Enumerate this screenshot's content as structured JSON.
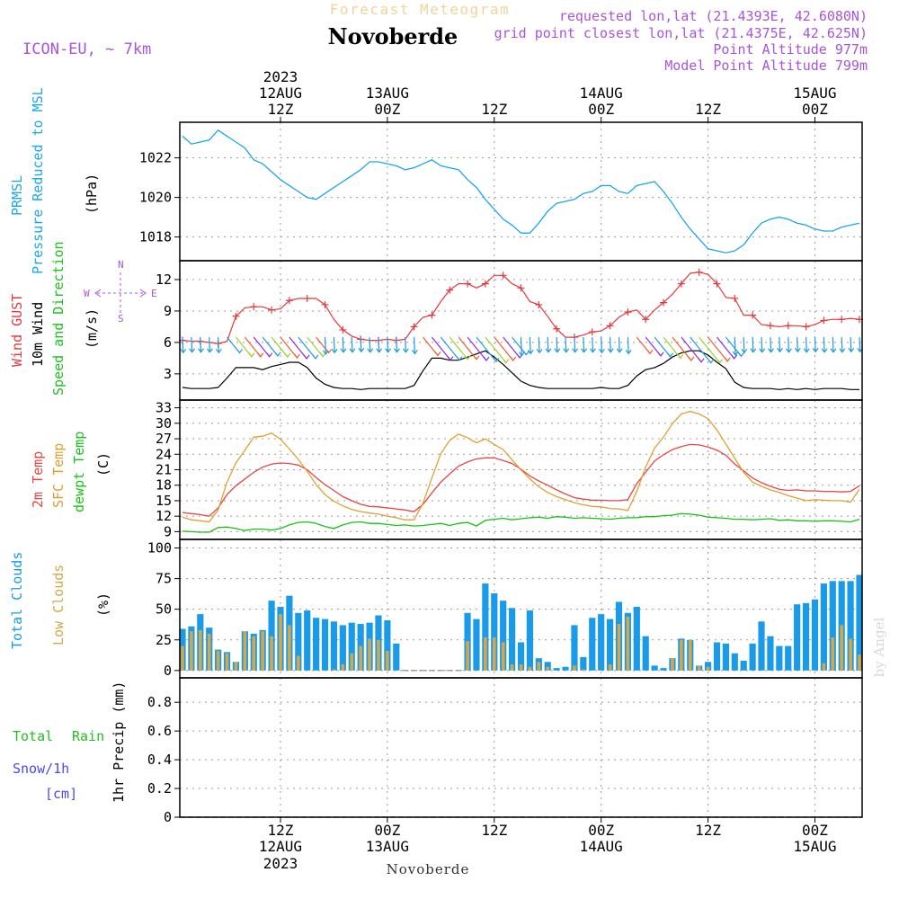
{
  "header": {
    "title": "Forecast Meteogram",
    "location": "Novoberde",
    "model": "ICON-EU, ~ 7km",
    "requested": "requested lon,lat (21.4393E, 42.6080N)",
    "gridpoint": "grid point closest lon,lat (21.4375E, 42.625N)",
    "point_alt": "Point Altitude 977m",
    "model_alt": "Model Point Altitude 799m",
    "footer_location": "Novoberde",
    "watermark": "by Angel"
  },
  "time_axis": {
    "top_labels": [
      {
        "line1": "2023",
        "line2": "12AUG",
        "line3": "12Z"
      },
      {
        "line1": "",
        "line2": "13AUG",
        "line3": "00Z"
      },
      {
        "line1": "",
        "line2": "",
        "line3": "12Z"
      },
      {
        "line1": "",
        "line2": "14AUG",
        "line3": "00Z"
      },
      {
        "line1": "",
        "line2": "",
        "line3": "12Z"
      },
      {
        "line1": "",
        "line2": "15AUG",
        "line3": "00Z"
      }
    ],
    "bottom_labels": [
      {
        "line1": "12Z",
        "line2": "12AUG",
        "line3": "2023"
      },
      {
        "line1": "00Z",
        "line2": "13AUG",
        "line3": ""
      },
      {
        "line1": "12Z",
        "line2": "",
        "line3": ""
      },
      {
        "line1": "00Z",
        "line2": "14AUG",
        "line3": ""
      },
      {
        "line1": "12Z",
        "line2": "",
        "line3": ""
      },
      {
        "line1": "00Z",
        "line2": "15AUG",
        "line3": ""
      }
    ],
    "tick_hours": [
      12,
      24,
      36,
      48,
      60,
      72
    ],
    "hours_range": [
      1,
      77
    ]
  },
  "panel_labels": {
    "pressure": {
      "l1": "PRMSL",
      "l2": "Pressure Reduced to MSL",
      "unit": "(hPa)"
    },
    "wind": {
      "l1": "Wind GUST",
      "l2": "10m Wind",
      "l3": "Speed and Direction",
      "unit": "(m/s)",
      "compass_n": "N",
      "compass_s": "S",
      "compass_w": "W",
      "compass_e": "E"
    },
    "temp": {
      "l1": "2m Temp",
      "l2": "SFC Temp",
      "l3": "dewpt Temp",
      "unit": "(C)"
    },
    "clouds": {
      "l1": "Total Clouds",
      "l2": "Low Clouds",
      "unit": "(%)"
    },
    "precip": {
      "l1": "Total",
      "l1b": "Rain",
      "l2": "Snow/1h",
      "l3": "[cm]",
      "unit": "1hr Precip (mm)"
    }
  },
  "colors": {
    "pressure": "#1aa7ec",
    "gust": "#e8383d",
    "wind": "#000000",
    "temp2m": "#e84545",
    "sfc": "#e0a030",
    "dewpt": "#19c219",
    "total_clouds": "#1a9bea",
    "low_clouds": "#d4a84a",
    "violet": "#a855d8",
    "green_label": "#22c022",
    "blue_label": "#4a4aee"
  },
  "chart_data": [
    {
      "type": "line",
      "name": "pressure",
      "ylabel": "(hPa)",
      "yticks": [
        1018,
        1020,
        1022
      ],
      "ylim": [
        1016.8,
        1023.8
      ],
      "x": [
        1,
        2,
        3,
        4,
        5,
        6,
        7,
        8,
        9,
        10,
        11,
        12,
        13,
        14,
        15,
        16,
        17,
        18,
        19,
        20,
        21,
        22,
        23,
        24,
        25,
        26,
        27,
        28,
        29,
        30,
        31,
        32,
        33,
        34,
        35,
        36,
        37,
        38,
        39,
        40,
        41,
        42,
        43,
        44,
        45,
        46,
        47,
        48,
        49,
        50,
        51,
        52,
        53,
        54,
        55,
        56,
        57,
        58,
        59,
        60,
        61,
        62,
        63,
        64,
        65,
        66,
        67,
        68,
        69,
        70,
        71,
        72,
        73,
        74,
        75,
        76,
        77
      ],
      "series": [
        {
          "values": [
            1023.1,
            1022.7,
            1022.8,
            1022.9,
            1023.4,
            1023.1,
            1022.8,
            1022.5,
            1021.9,
            1021.7,
            1021.3,
            1020.9,
            1020.6,
            1020.3,
            1020.0,
            1019.9,
            1020.2,
            1020.5,
            1020.8,
            1021.1,
            1021.4,
            1021.8,
            1021.8,
            1021.7,
            1021.6,
            1021.4,
            1021.5,
            1021.7,
            1021.9,
            1021.6,
            1021.5,
            1021.4,
            1020.9,
            1020.5,
            1019.9,
            1019.4,
            1018.9,
            1018.6,
            1018.2,
            1018.2,
            1018.7,
            1019.3,
            1019.7,
            1019.8,
            1019.9,
            1020.2,
            1020.3,
            1020.6,
            1020.6,
            1020.3,
            1020.2,
            1020.6,
            1020.7,
            1020.8,
            1020.3,
            1019.7,
            1019.0,
            1018.4,
            1017.9,
            1017.4,
            1017.3,
            1017.2,
            1017.3,
            1017.6,
            1018.2,
            1018.7,
            1018.9,
            1019.0,
            1018.9,
            1018.7,
            1018.6,
            1018.4,
            1018.3,
            1018.3,
            1018.5,
            1018.6,
            1018.7
          ]
        }
      ]
    },
    {
      "type": "line",
      "name": "wind",
      "ylabel": "(m/s)",
      "yticks": [
        3,
        6,
        9,
        12
      ],
      "ylim": [
        0.5,
        13.8
      ],
      "x": [
        1,
        2,
        3,
        4,
        5,
        6,
        7,
        8,
        9,
        10,
        11,
        12,
        13,
        14,
        15,
        16,
        17,
        18,
        19,
        20,
        21,
        22,
        23,
        24,
        25,
        26,
        27,
        28,
        29,
        30,
        31,
        32,
        33,
        34,
        35,
        36,
        37,
        38,
        39,
        40,
        41,
        42,
        43,
        44,
        45,
        46,
        47,
        48,
        49,
        50,
        51,
        52,
        53,
        54,
        55,
        56,
        57,
        58,
        59,
        60,
        61,
        62,
        63,
        64,
        65,
        66,
        67,
        68,
        69,
        70,
        71,
        72,
        73,
        74,
        75,
        76,
        77
      ],
      "series": [
        {
          "name": "Wind GUST",
          "values": [
            6.2,
            6.1,
            6.1,
            6.0,
            5.9,
            6.1,
            8.5,
            9.3,
            9.4,
            9.4,
            9.1,
            9.2,
            10.0,
            10.2,
            10.2,
            10.2,
            9.6,
            8.2,
            7.2,
            6.6,
            6.3,
            6.2,
            6.2,
            6.3,
            6.2,
            6.3,
            7.5,
            8.4,
            8.6,
            9.9,
            11.0,
            11.6,
            11.6,
            11.2,
            11.6,
            12.4,
            12.4,
            11.6,
            11.2,
            9.9,
            9.6,
            8.5,
            7.3,
            6.5,
            6.5,
            6.7,
            7.0,
            7.1,
            7.6,
            8.4,
            8.9,
            9.1,
            8.2,
            9.1,
            9.8,
            10.6,
            11.6,
            12.6,
            12.7,
            12.5,
            11.6,
            10.3,
            10.2,
            8.6,
            8.6,
            7.7,
            7.6,
            7.5,
            7.6,
            7.6,
            7.5,
            7.7,
            8.1,
            8.2,
            8.2,
            8.3,
            8.2
          ]
        },
        {
          "name": "10m Wind",
          "values": [
            1.7,
            1.6,
            1.6,
            1.6,
            1.7,
            2.6,
            3.6,
            3.6,
            3.6,
            3.4,
            3.7,
            3.9,
            4.1,
            4.1,
            3.6,
            2.6,
            2.0,
            1.7,
            1.6,
            1.6,
            1.5,
            1.6,
            1.6,
            1.6,
            1.6,
            1.6,
            1.9,
            3.3,
            4.5,
            4.5,
            4.3,
            4.3,
            4.6,
            4.9,
            5.2,
            4.6,
            3.9,
            3.1,
            2.3,
            1.9,
            1.7,
            1.6,
            1.6,
            1.6,
            1.6,
            1.6,
            1.6,
            1.7,
            1.6,
            1.6,
            1.9,
            2.8,
            3.4,
            3.6,
            4.0,
            4.6,
            5.0,
            5.2,
            5.2,
            4.8,
            4.1,
            3.5,
            2.2,
            1.7,
            1.6,
            1.6,
            1.6,
            1.5,
            1.6,
            1.5,
            1.6,
            1.5,
            1.6,
            1.6,
            1.6,
            1.5,
            1.5
          ]
        }
      ]
    },
    {
      "type": "line",
      "name": "temperature",
      "ylabel": "(C)",
      "yticks": [
        9,
        12,
        15,
        18,
        21,
        24,
        27,
        30,
        33
      ],
      "ylim": [
        7.5,
        34.5
      ],
      "x": [
        1,
        2,
        3,
        4,
        5,
        6,
        7,
        8,
        9,
        10,
        11,
        12,
        13,
        14,
        15,
        16,
        17,
        18,
        19,
        20,
        21,
        22,
        23,
        24,
        25,
        26,
        27,
        28,
        29,
        30,
        31,
        32,
        33,
        34,
        35,
        36,
        37,
        38,
        39,
        40,
        41,
        42,
        43,
        44,
        45,
        46,
        47,
        48,
        49,
        50,
        51,
        52,
        53,
        54,
        55,
        56,
        57,
        58,
        59,
        60,
        61,
        62,
        63,
        64,
        65,
        66,
        67,
        68,
        69,
        70,
        71,
        72,
        73,
        74,
        75,
        76,
        77
      ],
      "series": [
        {
          "name": "2m Temp",
          "values": [
            12.7,
            12.5,
            12.3,
            12.0,
            13.6,
            16.2,
            17.9,
            19.2,
            20.5,
            21.5,
            22.1,
            22.3,
            22.2,
            21.9,
            21.0,
            19.5,
            18.1,
            17.0,
            15.8,
            15.0,
            14.3,
            13.9,
            13.8,
            13.6,
            13.4,
            13.2,
            12.9,
            14.3,
            16.5,
            18.6,
            20.2,
            21.7,
            22.5,
            23.1,
            23.3,
            23.3,
            22.8,
            22.2,
            21.1,
            19.8,
            18.8,
            18.0,
            17.1,
            16.3,
            15.6,
            15.3,
            15.1,
            15.1,
            15.0,
            15.0,
            15.2,
            18.3,
            20.5,
            22.7,
            23.9,
            24.9,
            25.5,
            25.9,
            25.8,
            25.4,
            24.8,
            23.8,
            22.1,
            20.8,
            19.4,
            18.5,
            17.8,
            17.2,
            17.0,
            17.1,
            16.9,
            16.9,
            16.8,
            16.8,
            16.7,
            16.8,
            17.9
          ]
        },
        {
          "name": "SFC Temp",
          "values": [
            11.8,
            11.3,
            11.1,
            10.9,
            13.2,
            18.6,
            22.3,
            24.8,
            27.3,
            27.5,
            28.1,
            26.9,
            25.0,
            23.0,
            20.7,
            18.1,
            16.2,
            14.9,
            14.0,
            13.3,
            12.9,
            12.6,
            12.4,
            12.0,
            11.7,
            11.3,
            11.3,
            14.5,
            19.4,
            24.1,
            26.7,
            27.9,
            27.2,
            26.2,
            27.0,
            25.9,
            24.9,
            22.9,
            21.0,
            19.2,
            17.7,
            16.6,
            15.8,
            15.2,
            14.6,
            14.2,
            13.9,
            13.8,
            13.5,
            13.4,
            13.1,
            16.8,
            21.5,
            25.2,
            27.3,
            29.9,
            31.8,
            32.3,
            31.8,
            30.9,
            28.7,
            26.0,
            23.2,
            20.5,
            18.6,
            17.8,
            17.1,
            16.6,
            16.0,
            15.5,
            15.0,
            15.2,
            15.1,
            15.0,
            15.0,
            14.7,
            17.2
          ]
        },
        {
          "name": "dewpt Temp",
          "values": [
            9.1,
            9.0,
            8.9,
            8.9,
            9.8,
            9.9,
            9.6,
            9.2,
            9.5,
            9.5,
            9.3,
            9.6,
            10.3,
            10.8,
            10.9,
            10.6,
            10.0,
            9.6,
            10.3,
            10.8,
            10.9,
            10.6,
            10.6,
            10.4,
            10.2,
            10.3,
            10.1,
            10.2,
            10.4,
            10.6,
            10.2,
            10.6,
            10.8,
            10.1,
            11.2,
            11.4,
            11.6,
            11.3,
            11.5,
            11.7,
            11.8,
            11.6,
            11.9,
            11.8,
            11.6,
            11.7,
            11.6,
            11.5,
            11.4,
            11.6,
            11.7,
            11.7,
            11.9,
            11.9,
            12.1,
            12.2,
            12.5,
            12.4,
            12.2,
            11.8,
            11.7,
            11.6,
            11.4,
            11.4,
            11.3,
            11.4,
            11.5,
            11.2,
            11.3,
            11.1,
            11.1,
            11.0,
            11.1,
            11.1,
            11.0,
            10.9,
            11.4
          ]
        }
      ]
    },
    {
      "type": "bar",
      "name": "clouds",
      "ylabel": "(%)",
      "yticks": [
        0,
        25,
        50,
        75,
        100
      ],
      "ylim": [
        -6,
        107
      ],
      "x": [
        1,
        2,
        3,
        4,
        5,
        6,
        7,
        8,
        9,
        10,
        11,
        12,
        13,
        14,
        15,
        16,
        17,
        18,
        19,
        20,
        21,
        22,
        23,
        24,
        25,
        26,
        27,
        28,
        29,
        30,
        31,
        32,
        33,
        34,
        35,
        36,
        37,
        38,
        39,
        40,
        41,
        42,
        43,
        44,
        45,
        46,
        47,
        48,
        49,
        50,
        51,
        52,
        53,
        54,
        55,
        56,
        57,
        58,
        59,
        60,
        61,
        62,
        63,
        64,
        65,
        66,
        67,
        68,
        69,
        70,
        71,
        72,
        73,
        74,
        75,
        76,
        77
      ],
      "series": [
        {
          "name": "Total Clouds",
          "values": [
            34,
            36,
            46,
            35,
            17,
            15,
            7,
            32,
            30,
            33,
            57,
            52,
            61,
            47,
            49,
            43,
            42,
            40,
            37,
            39,
            38,
            39,
            45,
            41,
            22,
            0,
            0,
            0,
            0,
            0,
            0,
            0,
            47,
            42,
            71,
            63,
            57,
            51,
            23,
            49,
            10,
            7,
            2,
            3,
            37,
            11,
            43,
            46,
            42,
            56,
            47,
            52,
            28,
            4,
            2,
            10,
            26,
            25,
            4,
            7,
            23,
            22,
            14,
            8,
            22,
            40,
            28,
            20,
            20,
            54,
            55,
            58,
            71,
            73,
            73,
            73,
            78
          ]
        },
        {
          "name": "Low Clouds",
          "values": [
            20,
            32,
            33,
            30,
            16,
            14,
            7,
            32,
            28,
            32,
            28,
            46,
            37,
            12,
            0,
            0,
            0,
            1,
            5,
            14,
            20,
            26,
            25,
            16,
            0,
            0,
            0,
            0,
            0,
            0,
            0,
            0,
            24,
            0,
            27,
            27,
            23,
            5,
            5,
            3,
            7,
            3,
            0,
            0,
            4,
            1,
            0,
            0,
            5,
            38,
            44,
            0,
            0,
            0,
            0,
            10,
            25,
            25,
            4,
            3,
            0,
            0,
            0,
            0,
            0,
            0,
            0,
            0,
            0,
            0,
            0,
            0,
            6,
            27,
            37,
            26,
            13
          ]
        }
      ]
    },
    {
      "type": "line",
      "name": "precipitation",
      "ylabel": "1hr Precip (mm)",
      "yticks": [
        0,
        0.2,
        0.4,
        0.6,
        0.8
      ],
      "ylim": [
        0,
        0.97
      ],
      "x": [
        1,
        77
      ],
      "series": [
        {
          "name": "Total Rain",
          "values": [
            0,
            0
          ]
        }
      ]
    }
  ]
}
